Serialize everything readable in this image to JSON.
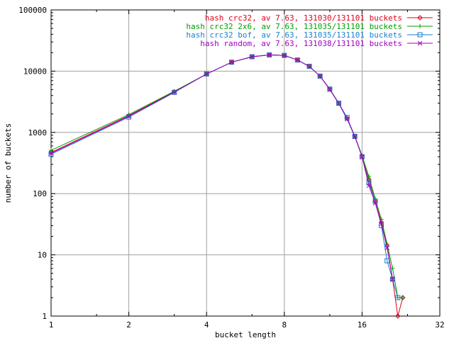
{
  "chart_data": {
    "type": "line",
    "xscale": "log2",
    "yscale": "log10",
    "xlabel": "bucket length",
    "ylabel": "number of buckets",
    "xlim": [
      1,
      32
    ],
    "ylim": [
      1,
      100000
    ],
    "xticks": [
      1,
      2,
      4,
      8,
      16,
      32
    ],
    "xtick_labels": [
      "1",
      "2",
      "4",
      "8",
      "16",
      "32"
    ],
    "yticks": [
      1,
      10,
      100,
      1000,
      10000,
      100000
    ],
    "ytick_labels": [
      "1",
      "10",
      "100",
      "1000",
      "10000",
      "100000"
    ],
    "grid": true,
    "legend_position": "top-right",
    "series": [
      {
        "name": "hash crc32, av 7.63, 131030/131101 buckets",
        "color": "#e0001a",
        "marker": "diamond",
        "points": [
          [
            1,
            470
          ],
          [
            2,
            1880
          ],
          [
            3,
            4600
          ],
          [
            4,
            9000
          ],
          [
            5,
            14000
          ],
          [
            6,
            17200
          ],
          [
            7,
            18400
          ],
          [
            8,
            18000
          ],
          [
            9,
            15200
          ],
          [
            10,
            12000
          ],
          [
            11,
            8300
          ],
          [
            12,
            5100
          ],
          [
            13,
            3000
          ],
          [
            14,
            1700
          ],
          [
            15,
            870
          ],
          [
            16,
            410
          ],
          [
            17,
            170
          ],
          [
            18,
            75
          ],
          [
            19,
            34
          ],
          [
            20,
            14
          ],
          [
            21,
            4
          ],
          [
            22,
            1
          ],
          [
            23,
            2
          ]
        ]
      },
      {
        "name": "hash crc32 2x6, av 7.63, 131035/131101 buckets",
        "color": "#00a000",
        "marker": "plus",
        "points": [
          [
            1,
            510
          ],
          [
            2,
            1950
          ],
          [
            3,
            4700
          ],
          [
            4,
            9000
          ],
          [
            5,
            14000
          ],
          [
            6,
            17300
          ],
          [
            7,
            18400
          ],
          [
            8,
            18100
          ],
          [
            9,
            15200
          ],
          [
            10,
            12000
          ],
          [
            11,
            8300
          ],
          [
            12,
            5100
          ],
          [
            13,
            2950
          ],
          [
            14,
            1700
          ],
          [
            15,
            860
          ],
          [
            16,
            420
          ],
          [
            17,
            190
          ],
          [
            18,
            82
          ],
          [
            19,
            38
          ],
          [
            20,
            15
          ],
          [
            21,
            6
          ],
          [
            22,
            2
          ],
          [
            23,
            2
          ]
        ]
      },
      {
        "name": "hash crc32 bof, av 7.63, 131035/131101 buckets",
        "color": "#1a7fd0",
        "marker": "square",
        "points": [
          [
            1,
            440
          ],
          [
            2,
            1780
          ],
          [
            3,
            4500
          ],
          [
            4,
            9000
          ],
          [
            5,
            14000
          ],
          [
            6,
            17200
          ],
          [
            7,
            18400
          ],
          [
            8,
            18100
          ],
          [
            9,
            15200
          ],
          [
            10,
            12000
          ],
          [
            11,
            8300
          ],
          [
            12,
            5100
          ],
          [
            13,
            3000
          ],
          [
            14,
            1750
          ],
          [
            15,
            860
          ],
          [
            16,
            400
          ],
          [
            17,
            150
          ],
          [
            18,
            75
          ],
          [
            19,
            30
          ],
          [
            20,
            8
          ],
          [
            21,
            4
          ],
          [
            22,
            2
          ]
        ]
      },
      {
        "name": "hash random, av 7.63, 131038/131101 buckets",
        "color": "#a000c0",
        "marker": "x",
        "points": [
          [
            1,
            455
          ],
          [
            2,
            1830
          ],
          [
            3,
            4550
          ],
          [
            4,
            9000
          ],
          [
            5,
            14000
          ],
          [
            6,
            17200
          ],
          [
            7,
            18400
          ],
          [
            8,
            18000
          ],
          [
            9,
            15200
          ],
          [
            10,
            11900
          ],
          [
            11,
            8300
          ],
          [
            12,
            5000
          ],
          [
            13,
            2950
          ],
          [
            14,
            1650
          ],
          [
            15,
            850
          ],
          [
            16,
            400
          ],
          [
            17,
            135
          ],
          [
            18,
            70
          ],
          [
            19,
            32
          ],
          [
            20,
            13
          ],
          [
            21,
            4
          ]
        ]
      }
    ]
  }
}
